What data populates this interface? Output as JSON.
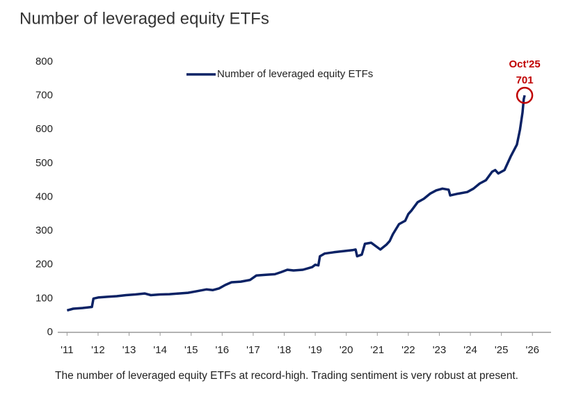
{
  "chart_data": {
    "type": "line",
    "title": "Number of leveraged equity ETFs",
    "caption": "The number of leveraged equity ETFs at record-high. Trading sentiment is very robust at present.",
    "annotation": {
      "date_label": "Oct'25",
      "value": 701
    },
    "legend": "top",
    "grid": false,
    "ylim": [
      0,
      800
    ],
    "yticks": [
      0,
      100,
      200,
      300,
      400,
      500,
      600,
      700,
      800
    ],
    "xlim": [
      2010.7,
      2026.6
    ],
    "xticks": [
      {
        "value": 2011,
        "label": "'11"
      },
      {
        "value": 2012,
        "label": "'12"
      },
      {
        "value": 2013,
        "label": "'13"
      },
      {
        "value": 2014,
        "label": "'14"
      },
      {
        "value": 2015,
        "label": "'15"
      },
      {
        "value": 2016,
        "label": "'16"
      },
      {
        "value": 2017,
        "label": "'17"
      },
      {
        "value": 2018,
        "label": "'18"
      },
      {
        "value": 2019,
        "label": "'19"
      },
      {
        "value": 2020,
        "label": "'20"
      },
      {
        "value": 2021,
        "label": "'21"
      },
      {
        "value": 2022,
        "label": "'22"
      },
      {
        "value": 2023,
        "label": "'23"
      },
      {
        "value": 2024,
        "label": "'24"
      },
      {
        "value": 2025,
        "label": "'25"
      },
      {
        "value": 2026,
        "label": "'26"
      }
    ],
    "x": [
      2011.0,
      2011.2,
      2011.5,
      2011.7,
      2011.8,
      2011.85,
      2012.0,
      2012.3,
      2012.6,
      2012.9,
      2013.2,
      2013.5,
      2013.7,
      2014.0,
      2014.3,
      2014.6,
      2014.9,
      2015.2,
      2015.5,
      2015.7,
      2015.9,
      2016.1,
      2016.3,
      2016.6,
      2016.9,
      2017.1,
      2017.4,
      2017.7,
      2017.9,
      2018.1,
      2018.3,
      2018.6,
      2018.9,
      2019.0,
      2019.1,
      2019.15,
      2019.3,
      2019.6,
      2019.9,
      2020.2,
      2020.3,
      2020.35,
      2020.5,
      2020.6,
      2020.8,
      2020.95,
      2021.1,
      2021.3,
      2021.4,
      2021.5,
      2021.7,
      2021.9,
      2022.0,
      2022.1,
      2022.3,
      2022.5,
      2022.7,
      2022.9,
      2023.1,
      2023.3,
      2023.35,
      2023.6,
      2023.9,
      2024.1,
      2024.3,
      2024.5,
      2024.7,
      2024.8,
      2024.9,
      2025.1,
      2025.3,
      2025.5,
      2025.6,
      2025.68,
      2025.72,
      2025.75
    ],
    "series": [
      {
        "name": "Number of leveraged equity ETFs",
        "color": "#0b2265",
        "values": [
          65,
          70,
          72,
          74,
          75,
          100,
          103,
          105,
          107,
          110,
          112,
          115,
          110,
          112,
          113,
          115,
          117,
          122,
          127,
          125,
          130,
          140,
          148,
          150,
          155,
          168,
          170,
          172,
          178,
          185,
          183,
          185,
          193,
          200,
          198,
          225,
          233,
          237,
          240,
          243,
          245,
          225,
          230,
          262,
          265,
          255,
          245,
          260,
          270,
          290,
          320,
          330,
          350,
          360,
          385,
          395,
          410,
          420,
          425,
          422,
          405,
          410,
          415,
          425,
          440,
          450,
          475,
          480,
          470,
          480,
          520,
          555,
          600,
          650,
          690,
          701
        ]
      }
    ]
  }
}
